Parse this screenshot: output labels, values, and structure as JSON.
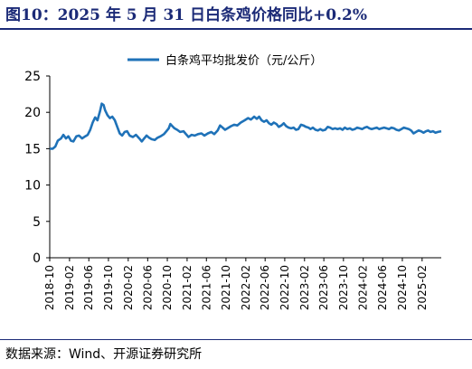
{
  "figure": {
    "title": "图10：2025 年 5 月 31 日白条鸡价格同比+0.2%",
    "source": "数据来源：Wind、开源证券研究所"
  },
  "colors": {
    "line": "#1f72b8",
    "title": "#1b2a77",
    "axis": "#000000"
  },
  "chart_data": {
    "type": "line",
    "legend_position": "top-center",
    "grid": false,
    "ylim": [
      0,
      25
    ],
    "yticks": [
      0,
      5,
      10,
      15,
      20,
      25
    ],
    "xlim": [
      "2018-10-01",
      "2025-05-31"
    ],
    "xticks": [
      "2018-10",
      "2019-02",
      "2019-06",
      "2019-10",
      "2020-02",
      "2020-06",
      "2020-10",
      "2021-02",
      "2021-06",
      "2021-10",
      "2022-02",
      "2022-06",
      "2022-10",
      "2023-02",
      "2023-06",
      "2023-10",
      "2024-02",
      "2024-06",
      "2024-10",
      "2025-02"
    ],
    "series": [
      {
        "name": "白条鸡平均批发价（元/公斤）",
        "points": [
          [
            "2018-10-01",
            15.0
          ],
          [
            "2018-10-20",
            15.0
          ],
          [
            "2018-11-05",
            15.3
          ],
          [
            "2018-11-20",
            16.1
          ],
          [
            "2018-12-10",
            16.4
          ],
          [
            "2018-12-25",
            16.9
          ],
          [
            "2019-01-10",
            16.4
          ],
          [
            "2019-01-25",
            16.7
          ],
          [
            "2019-02-10",
            16.1
          ],
          [
            "2019-02-25",
            16.0
          ],
          [
            "2019-03-15",
            16.7
          ],
          [
            "2019-04-01",
            16.8
          ],
          [
            "2019-04-20",
            16.4
          ],
          [
            "2019-05-10",
            16.7
          ],
          [
            "2019-05-25",
            16.9
          ],
          [
            "2019-06-10",
            17.6
          ],
          [
            "2019-06-25",
            18.6
          ],
          [
            "2019-07-10",
            19.3
          ],
          [
            "2019-07-25",
            18.9
          ],
          [
            "2019-08-10",
            20.2
          ],
          [
            "2019-08-20",
            21.2
          ],
          [
            "2019-09-01",
            21.0
          ],
          [
            "2019-09-10",
            20.3
          ],
          [
            "2019-09-25",
            19.6
          ],
          [
            "2019-10-10",
            19.2
          ],
          [
            "2019-10-25",
            19.4
          ],
          [
            "2019-11-10",
            18.9
          ],
          [
            "2019-11-25",
            18.0
          ],
          [
            "2019-12-10",
            17.1
          ],
          [
            "2019-12-25",
            16.8
          ],
          [
            "2020-01-10",
            17.3
          ],
          [
            "2020-01-25",
            17.4
          ],
          [
            "2020-02-10",
            16.8
          ],
          [
            "2020-03-01",
            16.6
          ],
          [
            "2020-03-20",
            16.9
          ],
          [
            "2020-04-10",
            16.4
          ],
          [
            "2020-04-25",
            16.0
          ],
          [
            "2020-05-10",
            16.4
          ],
          [
            "2020-05-25",
            16.8
          ],
          [
            "2020-06-10",
            16.5
          ],
          [
            "2020-06-25",
            16.3
          ],
          [
            "2020-07-15",
            16.2
          ],
          [
            "2020-08-01",
            16.5
          ],
          [
            "2020-08-20",
            16.7
          ],
          [
            "2020-09-10",
            17.0
          ],
          [
            "2020-09-25",
            17.4
          ],
          [
            "2020-10-10",
            17.8
          ],
          [
            "2020-10-20",
            18.4
          ],
          [
            "2020-11-01",
            18.1
          ],
          [
            "2020-11-15",
            17.8
          ],
          [
            "2020-12-01",
            17.6
          ],
          [
            "2020-12-20",
            17.3
          ],
          [
            "2021-01-10",
            17.4
          ],
          [
            "2021-01-25",
            17.0
          ],
          [
            "2021-02-10",
            16.6
          ],
          [
            "2021-03-01",
            16.9
          ],
          [
            "2021-03-20",
            16.8
          ],
          [
            "2021-04-10",
            17.0
          ],
          [
            "2021-05-01",
            17.1
          ],
          [
            "2021-05-20",
            16.8
          ],
          [
            "2021-06-10",
            17.1
          ],
          [
            "2021-07-01",
            17.3
          ],
          [
            "2021-07-20",
            17.0
          ],
          [
            "2021-08-10",
            17.5
          ],
          [
            "2021-08-25",
            18.2
          ],
          [
            "2021-09-10",
            17.9
          ],
          [
            "2021-09-25",
            17.6
          ],
          [
            "2021-10-10",
            17.8
          ],
          [
            "2021-11-01",
            18.1
          ],
          [
            "2021-11-20",
            18.3
          ],
          [
            "2021-12-10",
            18.2
          ],
          [
            "2022-01-01",
            18.6
          ],
          [
            "2022-01-25",
            18.9
          ],
          [
            "2022-02-15",
            19.2
          ],
          [
            "2022-03-05",
            19.0
          ],
          [
            "2022-03-25",
            19.4
          ],
          [
            "2022-04-10",
            19.1
          ],
          [
            "2022-04-25",
            19.4
          ],
          [
            "2022-05-10",
            18.9
          ],
          [
            "2022-05-25",
            18.7
          ],
          [
            "2022-06-10",
            18.9
          ],
          [
            "2022-06-25",
            18.5
          ],
          [
            "2022-07-10",
            18.3
          ],
          [
            "2022-07-25",
            18.6
          ],
          [
            "2022-08-10",
            18.4
          ],
          [
            "2022-08-25",
            18.0
          ],
          [
            "2022-09-10",
            18.2
          ],
          [
            "2022-09-25",
            18.5
          ],
          [
            "2022-10-10",
            18.1
          ],
          [
            "2022-10-25",
            17.9
          ],
          [
            "2022-11-10",
            17.8
          ],
          [
            "2022-11-25",
            17.9
          ],
          [
            "2022-12-10",
            17.6
          ],
          [
            "2022-12-25",
            17.7
          ],
          [
            "2023-01-10",
            18.3
          ],
          [
            "2023-01-25",
            18.2
          ],
          [
            "2023-02-10",
            18.0
          ],
          [
            "2023-02-25",
            17.9
          ],
          [
            "2023-03-10",
            17.7
          ],
          [
            "2023-03-25",
            17.9
          ],
          [
            "2023-04-10",
            17.6
          ],
          [
            "2023-04-25",
            17.5
          ],
          [
            "2023-05-10",
            17.7
          ],
          [
            "2023-05-25",
            17.5
          ],
          [
            "2023-06-10",
            17.6
          ],
          [
            "2023-06-25",
            18.0
          ],
          [
            "2023-07-10",
            17.9
          ],
          [
            "2023-07-25",
            17.7
          ],
          [
            "2023-08-10",
            17.8
          ],
          [
            "2023-08-25",
            17.7
          ],
          [
            "2023-09-10",
            17.8
          ],
          [
            "2023-09-25",
            17.6
          ],
          [
            "2023-10-10",
            17.9
          ],
          [
            "2023-10-25",
            17.7
          ],
          [
            "2023-11-10",
            17.8
          ],
          [
            "2023-11-25",
            17.6
          ],
          [
            "2023-12-10",
            17.7
          ],
          [
            "2023-12-25",
            17.9
          ],
          [
            "2024-01-10",
            17.8
          ],
          [
            "2024-01-25",
            17.7
          ],
          [
            "2024-02-10",
            17.9
          ],
          [
            "2024-02-25",
            18.0
          ],
          [
            "2024-03-10",
            17.8
          ],
          [
            "2024-03-25",
            17.7
          ],
          [
            "2024-04-10",
            17.8
          ],
          [
            "2024-04-25",
            17.9
          ],
          [
            "2024-05-10",
            17.7
          ],
          [
            "2024-05-25",
            17.8
          ],
          [
            "2024-06-10",
            17.9
          ],
          [
            "2024-06-25",
            17.8
          ],
          [
            "2024-07-10",
            17.7
          ],
          [
            "2024-07-25",
            17.9
          ],
          [
            "2024-08-10",
            17.8
          ],
          [
            "2024-08-25",
            17.6
          ],
          [
            "2024-09-10",
            17.5
          ],
          [
            "2024-09-25",
            17.7
          ],
          [
            "2024-10-10",
            17.9
          ],
          [
            "2024-10-25",
            17.8
          ],
          [
            "2024-11-10",
            17.7
          ],
          [
            "2024-11-25",
            17.5
          ],
          [
            "2024-12-10",
            17.1
          ],
          [
            "2024-12-25",
            17.3
          ],
          [
            "2025-01-10",
            17.5
          ],
          [
            "2025-01-25",
            17.4
          ],
          [
            "2025-02-10",
            17.2
          ],
          [
            "2025-02-25",
            17.4
          ],
          [
            "2025-03-10",
            17.5
          ],
          [
            "2025-03-25",
            17.3
          ],
          [
            "2025-04-10",
            17.4
          ],
          [
            "2025-04-25",
            17.2
          ],
          [
            "2025-05-10",
            17.3
          ],
          [
            "2025-05-31",
            17.4
          ]
        ]
      }
    ]
  }
}
